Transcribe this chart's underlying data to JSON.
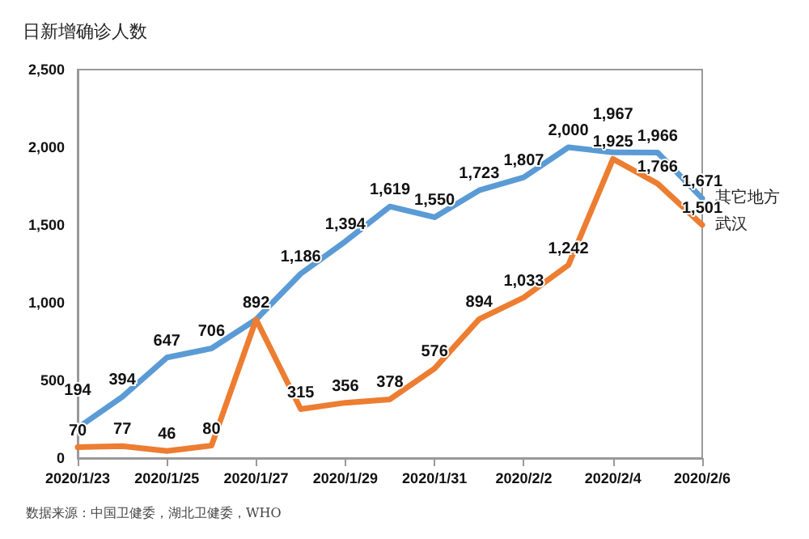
{
  "chart_data": {
    "type": "line",
    "ylabel": "日新增确诊人数",
    "x": [
      "2020-01-23",
      "2020-01-24",
      "2020-01-25",
      "2020-01-26",
      "2020-01-27",
      "2020-01-28",
      "2020-01-29",
      "2020-01-30",
      "2020-01-31",
      "2020-02-01",
      "2020-02-02",
      "2020-02-03",
      "2020-02-04",
      "2020-02-05",
      "2020-02-06"
    ],
    "series": [
      {
        "name": "其它地方",
        "color": "#5b9bd5",
        "values": [
          194,
          394,
          647,
          706,
          892,
          1186,
          1394,
          1619,
          1550,
          1723,
          1807,
          2000,
          1967,
          1966,
          1671
        ],
        "value_labels": [
          "194",
          "394",
          "647",
          "706",
          null,
          "1,186",
          "1,394",
          "1,619",
          "1,550",
          "1,723",
          "1,807",
          "2,000",
          "1,967",
          "1,966",
          "1,671"
        ]
      },
      {
        "name": "武汉",
        "color": "#ed7d31",
        "values": [
          70,
          77,
          46,
          80,
          892,
          315,
          356,
          378,
          576,
          894,
          1033,
          1242,
          1925,
          1766,
          1501
        ],
        "value_labels": [
          "70",
          "77",
          "46",
          "80",
          "892",
          "315",
          "356",
          "378",
          "576",
          "894",
          "1,033",
          "1,242",
          "1,925",
          "1,766",
          "1,501"
        ]
      }
    ],
    "xlim": [
      "2020-01-23",
      "2020-02-06"
    ],
    "xticks": [
      {
        "value": "2020-01-23",
        "label": "2020/1/23"
      },
      {
        "value": "2020-01-25",
        "label": "2020/1/25"
      },
      {
        "value": "2020-01-27",
        "label": "2020/1/27"
      },
      {
        "value": "2020-01-29",
        "label": "2020/1/29"
      },
      {
        "value": "2020-01-31",
        "label": "2020/1/31"
      },
      {
        "value": "2020-02-02",
        "label": "2020/2/2"
      },
      {
        "value": "2020-02-04",
        "label": "2020/2/4"
      },
      {
        "value": "2020-02-06",
        "label": "2020/2/6"
      }
    ],
    "ylim": [
      0,
      2500
    ],
    "yticks": [
      {
        "value": 0,
        "label": "0"
      },
      {
        "value": 500,
        "label": "500"
      },
      {
        "value": 1000,
        "label": "1,000"
      },
      {
        "value": 1500,
        "label": "1,500"
      },
      {
        "value": 2000,
        "label": "2,000"
      },
      {
        "value": 2500,
        "label": "2,500"
      }
    ],
    "grid": false,
    "legend": false,
    "marker": "none",
    "line_style": "solid",
    "annotations": [
      "数据来源：中国卫健委，湖北卫健委，WHO"
    ]
  }
}
